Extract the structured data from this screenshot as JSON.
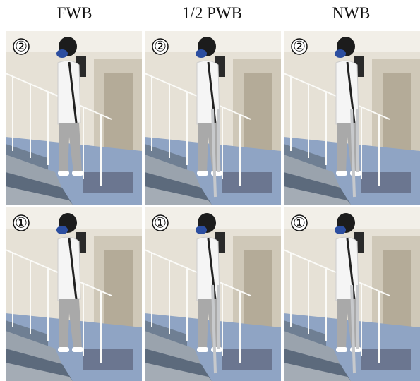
{
  "columns": [
    "FWB",
    "1/2 PWB",
    "NWB"
  ],
  "rows": [
    {
      "step": "②"
    },
    {
      "step": "①"
    }
  ]
}
